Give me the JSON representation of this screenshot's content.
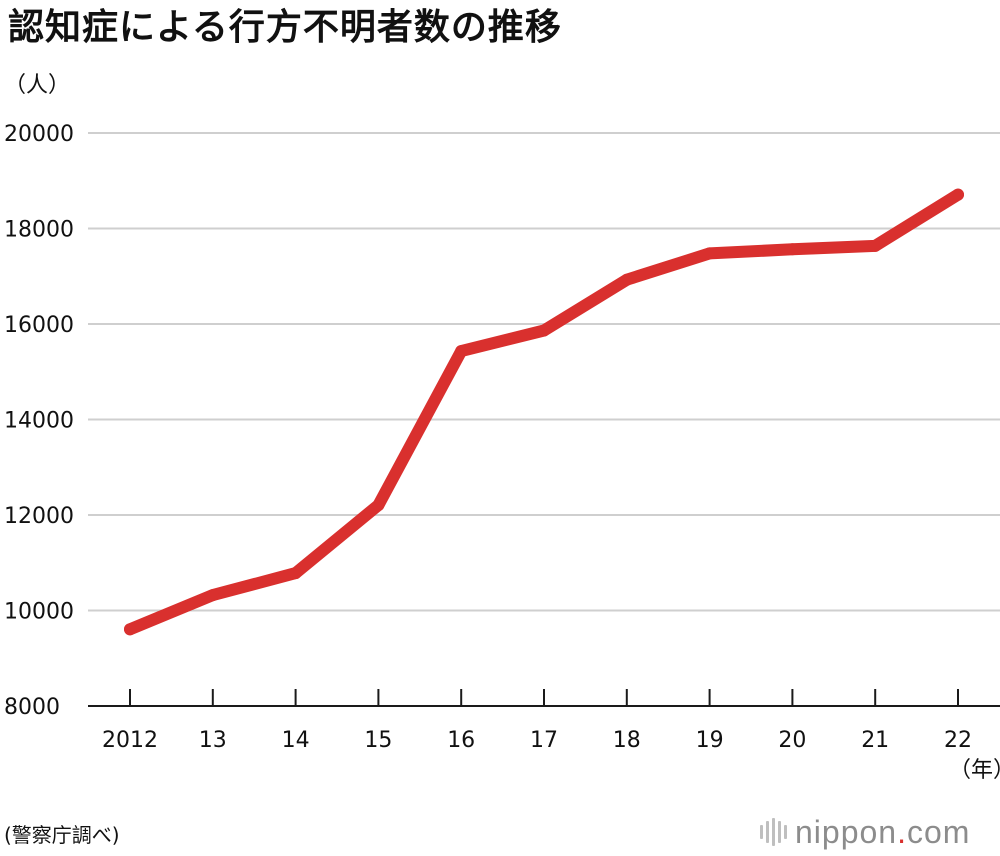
{
  "chart_data": {
    "type": "line",
    "title": "認知症による行方不明者数の推移",
    "ylabel": "（人）",
    "xlabel": "（年）",
    "categories": [
      "2012",
      "13",
      "14",
      "15",
      "16",
      "17",
      "18",
      "19",
      "20",
      "21",
      "22"
    ],
    "x": [
      2012,
      2013,
      2014,
      2015,
      2016,
      2017,
      2018,
      2019,
      2020,
      2021,
      2022
    ],
    "values": [
      9607,
      10322,
      10783,
      12208,
      15432,
      15863,
      16927,
      17479,
      17565,
      17636,
      18709
    ],
    "ylim": [
      8000,
      20000
    ],
    "yticks": [
      "8000",
      "10000",
      "12000",
      "14000",
      "16000",
      "18000",
      "20000"
    ],
    "grid": true,
    "line_color": "#d9302e"
  },
  "footer": {
    "source": "(警察庁調べ)",
    "brand_name": "nippon",
    "brand_dot": ".",
    "brand_suffix": "com"
  }
}
